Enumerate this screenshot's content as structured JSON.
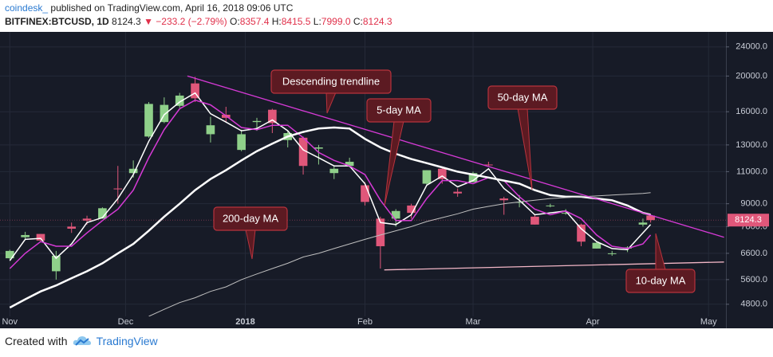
{
  "header": {
    "author": "coindesk_",
    "published": "published on TradingView.com, April 16, 2018 09:06 UTC",
    "symbol": "BITFINEX:BTCUSD, 1D",
    "last": "8124.3",
    "change": "▼ −233.2 (−2.79%)",
    "o_label": "O:",
    "o": "8357.4",
    "h_label": "H:",
    "h": "8415.5",
    "l_label": "L:",
    "l": "7999.0",
    "c_label": "C:",
    "c": "8124.3"
  },
  "footer": {
    "created": "Created with",
    "brand": "TradingView"
  },
  "chart_data": {
    "type": "candlestick",
    "log_scale": true,
    "grid": true,
    "up_color": "#8fd08a",
    "down_color": "#e0577a",
    "x": [
      0,
      4,
      8,
      12,
      16,
      20,
      24,
      28,
      32,
      36,
      40,
      44,
      48,
      52,
      56,
      60,
      64,
      68,
      72,
      76,
      80,
      84,
      88,
      92,
      96,
      100,
      104,
      108,
      112,
      116,
      120,
      124,
      128,
      132,
      136,
      140,
      144,
      148,
      152,
      156,
      160,
      164,
      166
    ],
    "open": [
      6400,
      7300,
      7450,
      5900,
      7800,
      8200,
      8200,
      9900,
      10900,
      13700,
      15000,
      16600,
      19100,
      13900,
      15700,
      12600,
      15000,
      16200,
      13400,
      13600,
      12700,
      10900,
      11400,
      10100,
      8200,
      8200,
      8900,
      10200,
      11200,
      9700,
      10300,
      11500,
      9300,
      9100,
      8300,
      8900,
      8500,
      7900,
      6800,
      6600,
      6800,
      7900,
      8357.4
    ],
    "high": [
      6750,
      7550,
      7450,
      6700,
      8000,
      8350,
      8800,
      11400,
      11800,
      17000,
      17500,
      18000,
      19900,
      15500,
      16500,
      14300,
      15400,
      16300,
      14200,
      13700,
      13000,
      11400,
      12000,
      10300,
      8300,
      8700,
      9000,
      11100,
      11300,
      9900,
      11000,
      11700,
      9400,
      9500,
      8400,
      9000,
      8700,
      7950,
      7100,
      6700,
      6900,
      8200,
      8415.5
    ],
    "low": [
      6350,
      7200,
      7100,
      5600,
      7500,
      7900,
      8200,
      9000,
      10600,
      13600,
      14900,
      16400,
      17000,
      13200,
      15000,
      12500,
      14200,
      14000,
      12800,
      10800,
      11500,
      10500,
      11300,
      8900,
      6000,
      7800,
      8200,
      10100,
      10200,
      9400,
      10300,
      11400,
      8400,
      8800,
      7900,
      8800,
      8400,
      6900,
      6800,
      6500,
      6650,
      7800,
      7999
    ],
    "close": [
      6700,
      7400,
      7150,
      6500,
      7700,
      8100,
      8750,
      9850,
      11200,
      16800,
      16700,
      17700,
      17400,
      14700,
      15400,
      13900,
      15100,
      14900,
      14000,
      11400,
      12800,
      11200,
      11700,
      9100,
      6900,
      8600,
      8500,
      11100,
      10500,
      9600,
      10900,
      11450,
      9200,
      9100,
      7900,
      8900,
      8500,
      7100,
      7050,
      6600,
      6850,
      8000,
      8124.3
    ],
    "series": [
      {
        "name": "5-day MA",
        "color": "#ffffff",
        "width": 1.5,
        "values": [
          6300,
          7200,
          7250,
          6400,
          7000,
          8000,
          8250,
          9300,
          10800,
          13300,
          15700,
          17000,
          18000,
          15800,
          15000,
          14200,
          14400,
          15200,
          14200,
          12600,
          12000,
          11400,
          11400,
          10200,
          8000,
          7900,
          8400,
          10100,
          10700,
          10000,
          10400,
          11200,
          9900,
          9200,
          8400,
          8500,
          8600,
          7700,
          7100,
          6800,
          6750,
          7500,
          7900
        ]
      },
      {
        "name": "10-day MA",
        "color": "#d63ad6",
        "width": 1.5,
        "values": [
          6000,
          6600,
          7100,
          6900,
          6900,
          7500,
          8100,
          8700,
          9800,
          12000,
          14300,
          16300,
          17200,
          16700,
          15600,
          14500,
          14300,
          14700,
          14700,
          13600,
          12400,
          11800,
          11400,
          10800,
          9200,
          8100,
          8100,
          9300,
          10400,
          10400,
          10200,
          10600,
          10400,
          9400,
          8700,
          8400,
          8600,
          8200,
          7400,
          6900,
          6800,
          7000,
          7400
        ]
      },
      {
        "name": "50-day MA",
        "color": "#ffffff",
        "width": 2.5,
        "values": [
          4700,
          4950,
          5200,
          5400,
          5650,
          5900,
          6200,
          6600,
          7000,
          7600,
          8300,
          9000,
          9800,
          10500,
          11100,
          11800,
          12500,
          13100,
          13700,
          14100,
          14400,
          14500,
          14400,
          13500,
          12800,
          12300,
          11900,
          11600,
          11300,
          11000,
          10800,
          10600,
          10400,
          10200,
          9800,
          9500,
          9400,
          9400,
          9300,
          9200,
          8900,
          8500,
          8400
        ]
      },
      {
        "name": "200-day MA",
        "color": "#bfbfbf",
        "width": 1,
        "values": [
          null,
          null,
          null,
          null,
          null,
          null,
          null,
          null,
          null,
          4450,
          4650,
          4850,
          5000,
          5200,
          5350,
          5600,
          5800,
          6000,
          6200,
          6450,
          6600,
          6800,
          7000,
          7200,
          7400,
          7600,
          7800,
          8050,
          8250,
          8450,
          8700,
          8850,
          9000,
          9100,
          9200,
          9300,
          9350,
          9400,
          9450,
          9500,
          9550,
          9600,
          9650
        ]
      }
    ],
    "trendlines": [
      {
        "name": "Descending trendline",
        "color": "#d63ad6",
        "x": [
          46,
          185
        ],
        "values": [
          20000,
          7300
        ]
      },
      {
        "color": "#f2b6c6",
        "x": [
          97,
          185
        ],
        "values": [
          5950,
          6250
        ]
      }
    ],
    "xlim": [
      -1.5,
      185.5
    ],
    "xticks": [
      {
        "value": 0,
        "label": "Nov"
      },
      {
        "value": 30,
        "label": "Dec"
      },
      {
        "value": 61,
        "label": "2018"
      },
      {
        "value": 92,
        "label": "Feb"
      },
      {
        "value": 120,
        "label": "Mar"
      },
      {
        "value": 151,
        "label": "Apr"
      },
      {
        "value": 181,
        "label": "May"
      }
    ],
    "ylim": [
      4450,
      26100
    ],
    "yticks": [
      {
        "value": 4800,
        "label": "4800.0"
      },
      {
        "value": 5600,
        "label": "5600.0"
      },
      {
        "value": 6600,
        "label": "6600.0"
      },
      {
        "value": 7800,
        "label": "7800.0"
      },
      {
        "value": 9000,
        "label": "9000.0"
      },
      {
        "value": 11000,
        "label": "11000.0"
      },
      {
        "value": 13000,
        "label": "13000.0"
      },
      {
        "value": 16000,
        "label": "16000.0"
      },
      {
        "value": 20000,
        "label": "20000.0"
      },
      {
        "value": 24000,
        "label": "24000.0"
      }
    ]
  }
}
